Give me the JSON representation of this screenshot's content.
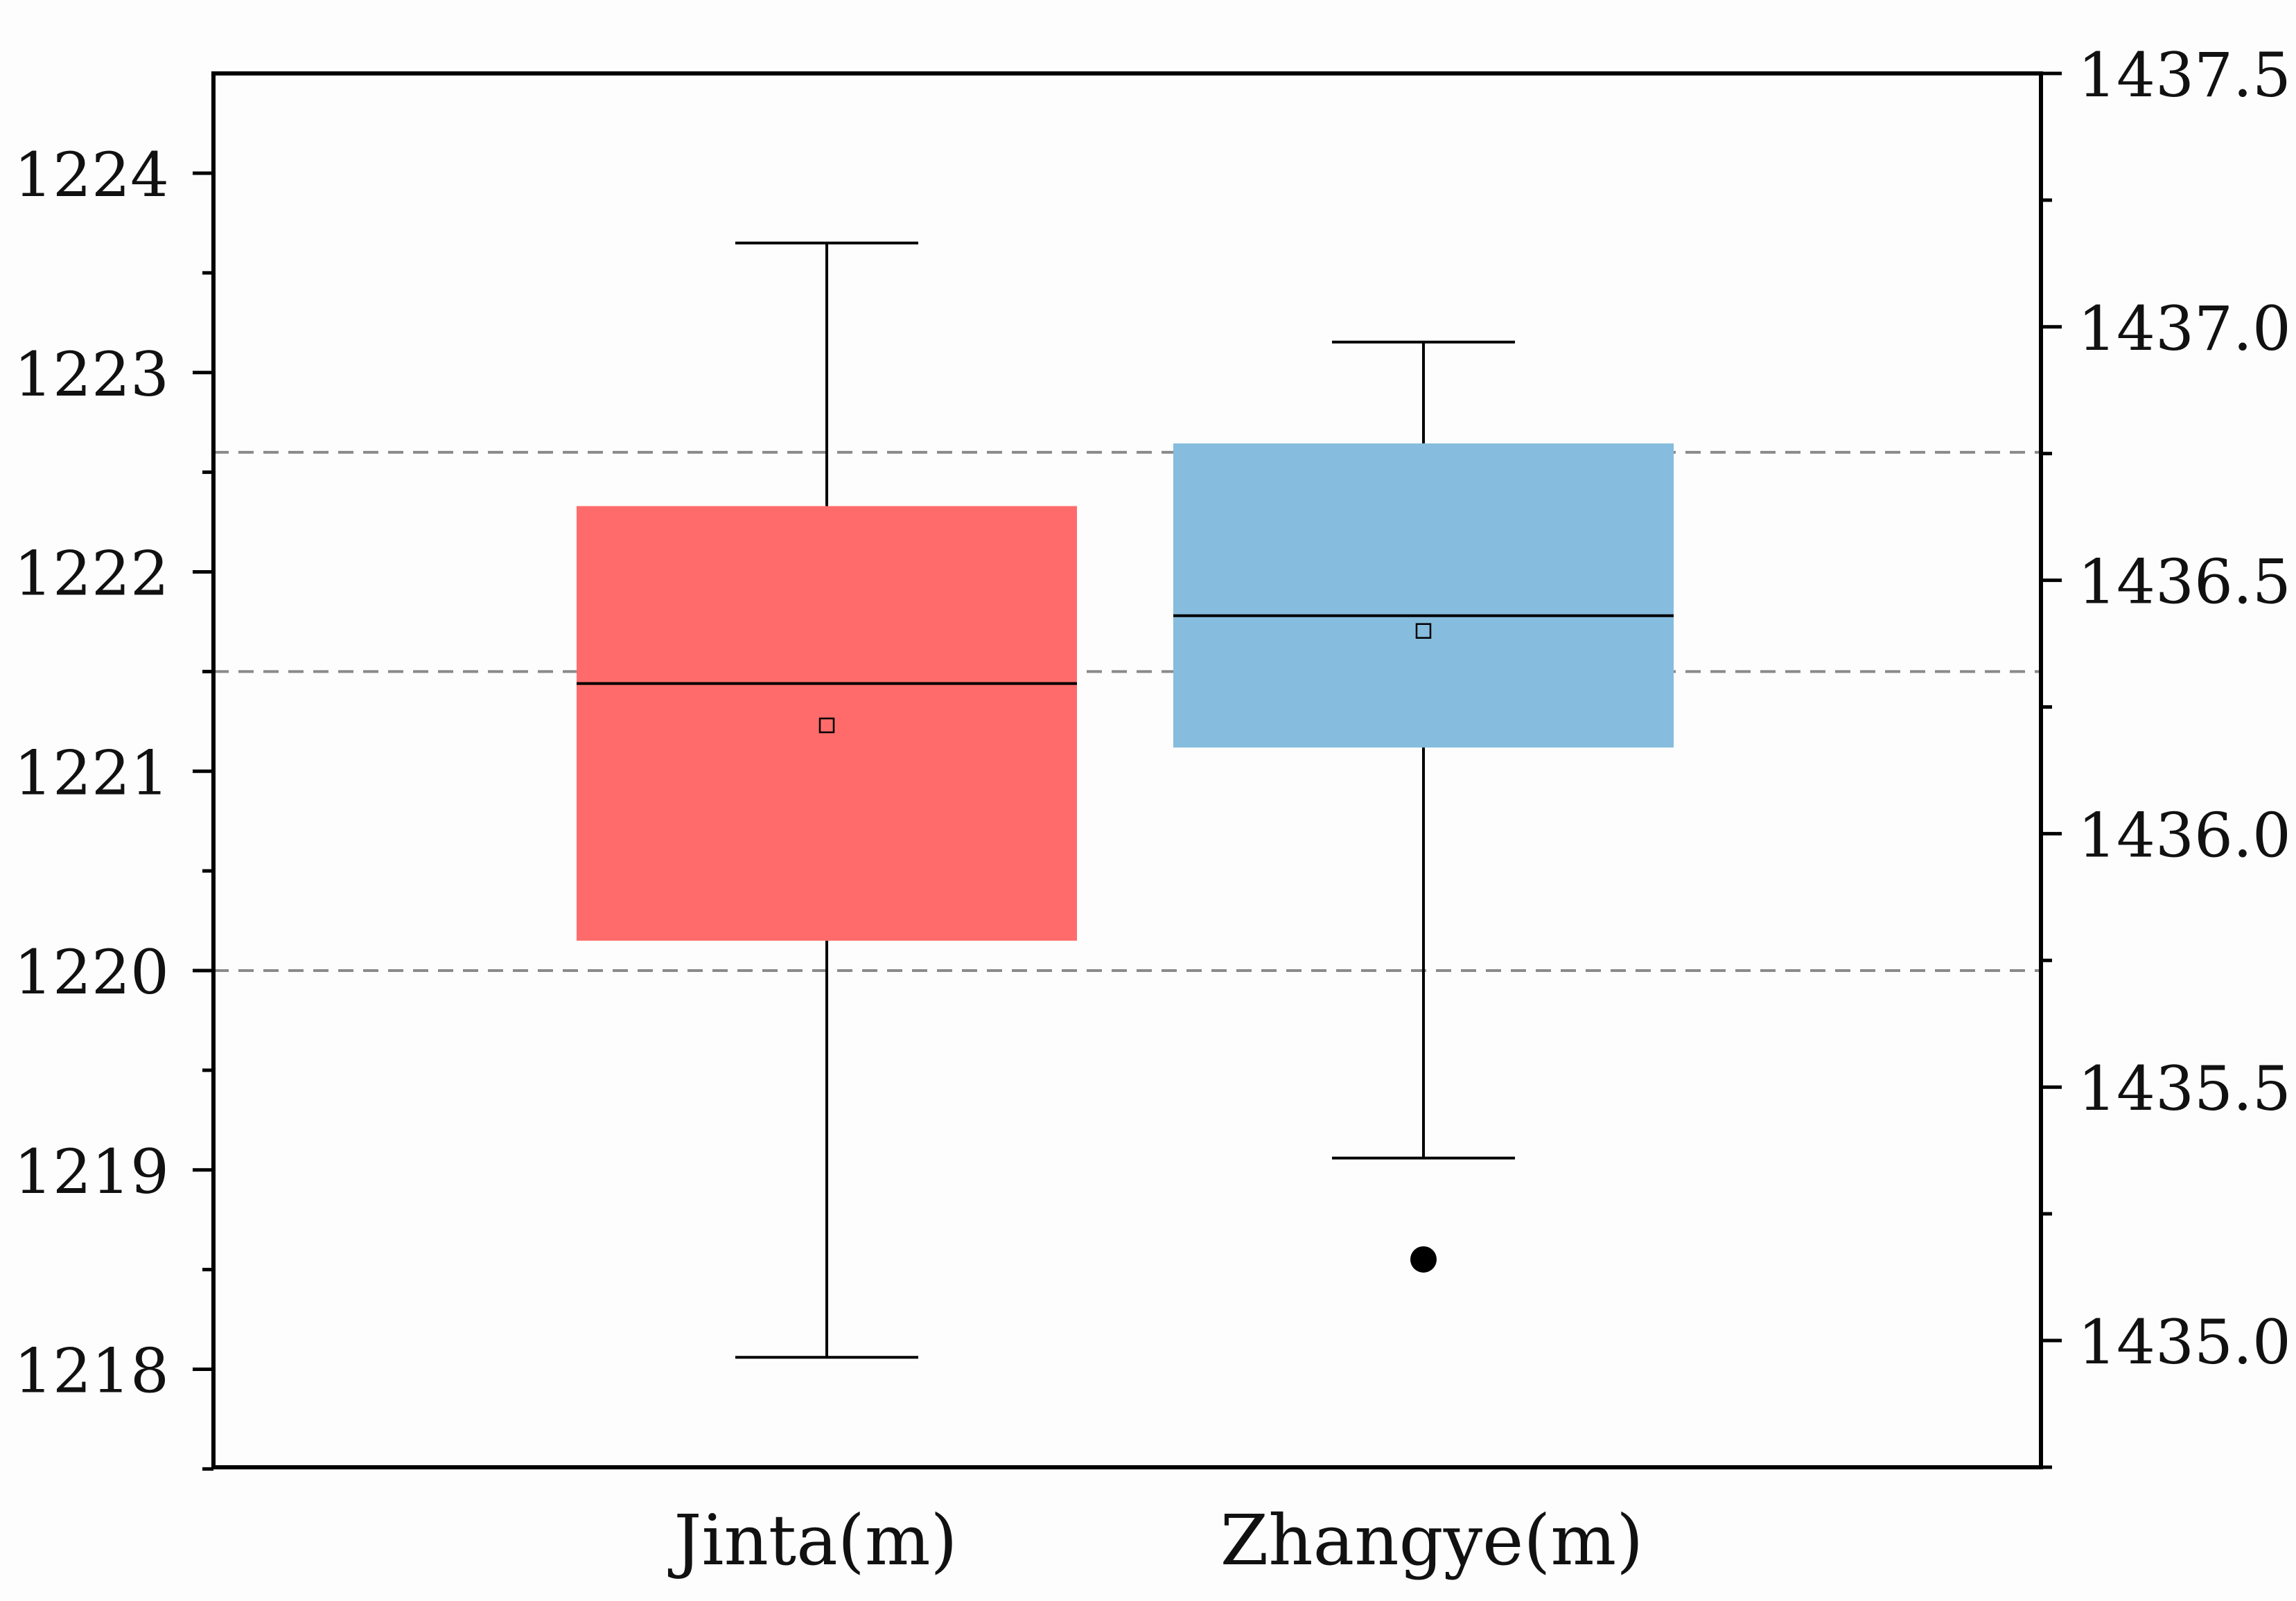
{
  "chart_data": {
    "type": "box",
    "categories": [
      "Jinta(m)",
      "Zhangye(m)"
    ],
    "left_axis": {
      "ylim": [
        1217.5,
        1224.5
      ],
      "ticks": [
        "1218",
        "1219",
        "1220",
        "1221",
        "1222",
        "1223",
        "1224"
      ]
    },
    "right_axis": {
      "ylim": [
        1434.75,
        1437.5
      ],
      "ticks": [
        "1435.0",
        "1435.5",
        "1436.0",
        "1436.5",
        "1437.0",
        "1437.5"
      ]
    },
    "series": [
      {
        "category": "Jinta(m)",
        "axis": "left",
        "color": "#ff6b6b",
        "whisker_low": 1218.06,
        "q1": 1220.15,
        "median": 1221.44,
        "mean": 1221.23,
        "q3": 1222.33,
        "whisker_high": 1223.65,
        "outliers": []
      },
      {
        "category": "Zhangye(m)",
        "axis": "right",
        "color": "#86bcdd",
        "whisker_low": 1435.36,
        "q1": 1436.17,
        "median": 1436.43,
        "mean": 1436.4,
        "q3": 1436.77,
        "whisker_high": 1436.97,
        "outliers": [
          1435.16
        ]
      }
    ],
    "reference_lines_left_axis": [
      1220.0,
      1221.5,
      1222.6
    ],
    "grid": false,
    "legend": "none"
  }
}
